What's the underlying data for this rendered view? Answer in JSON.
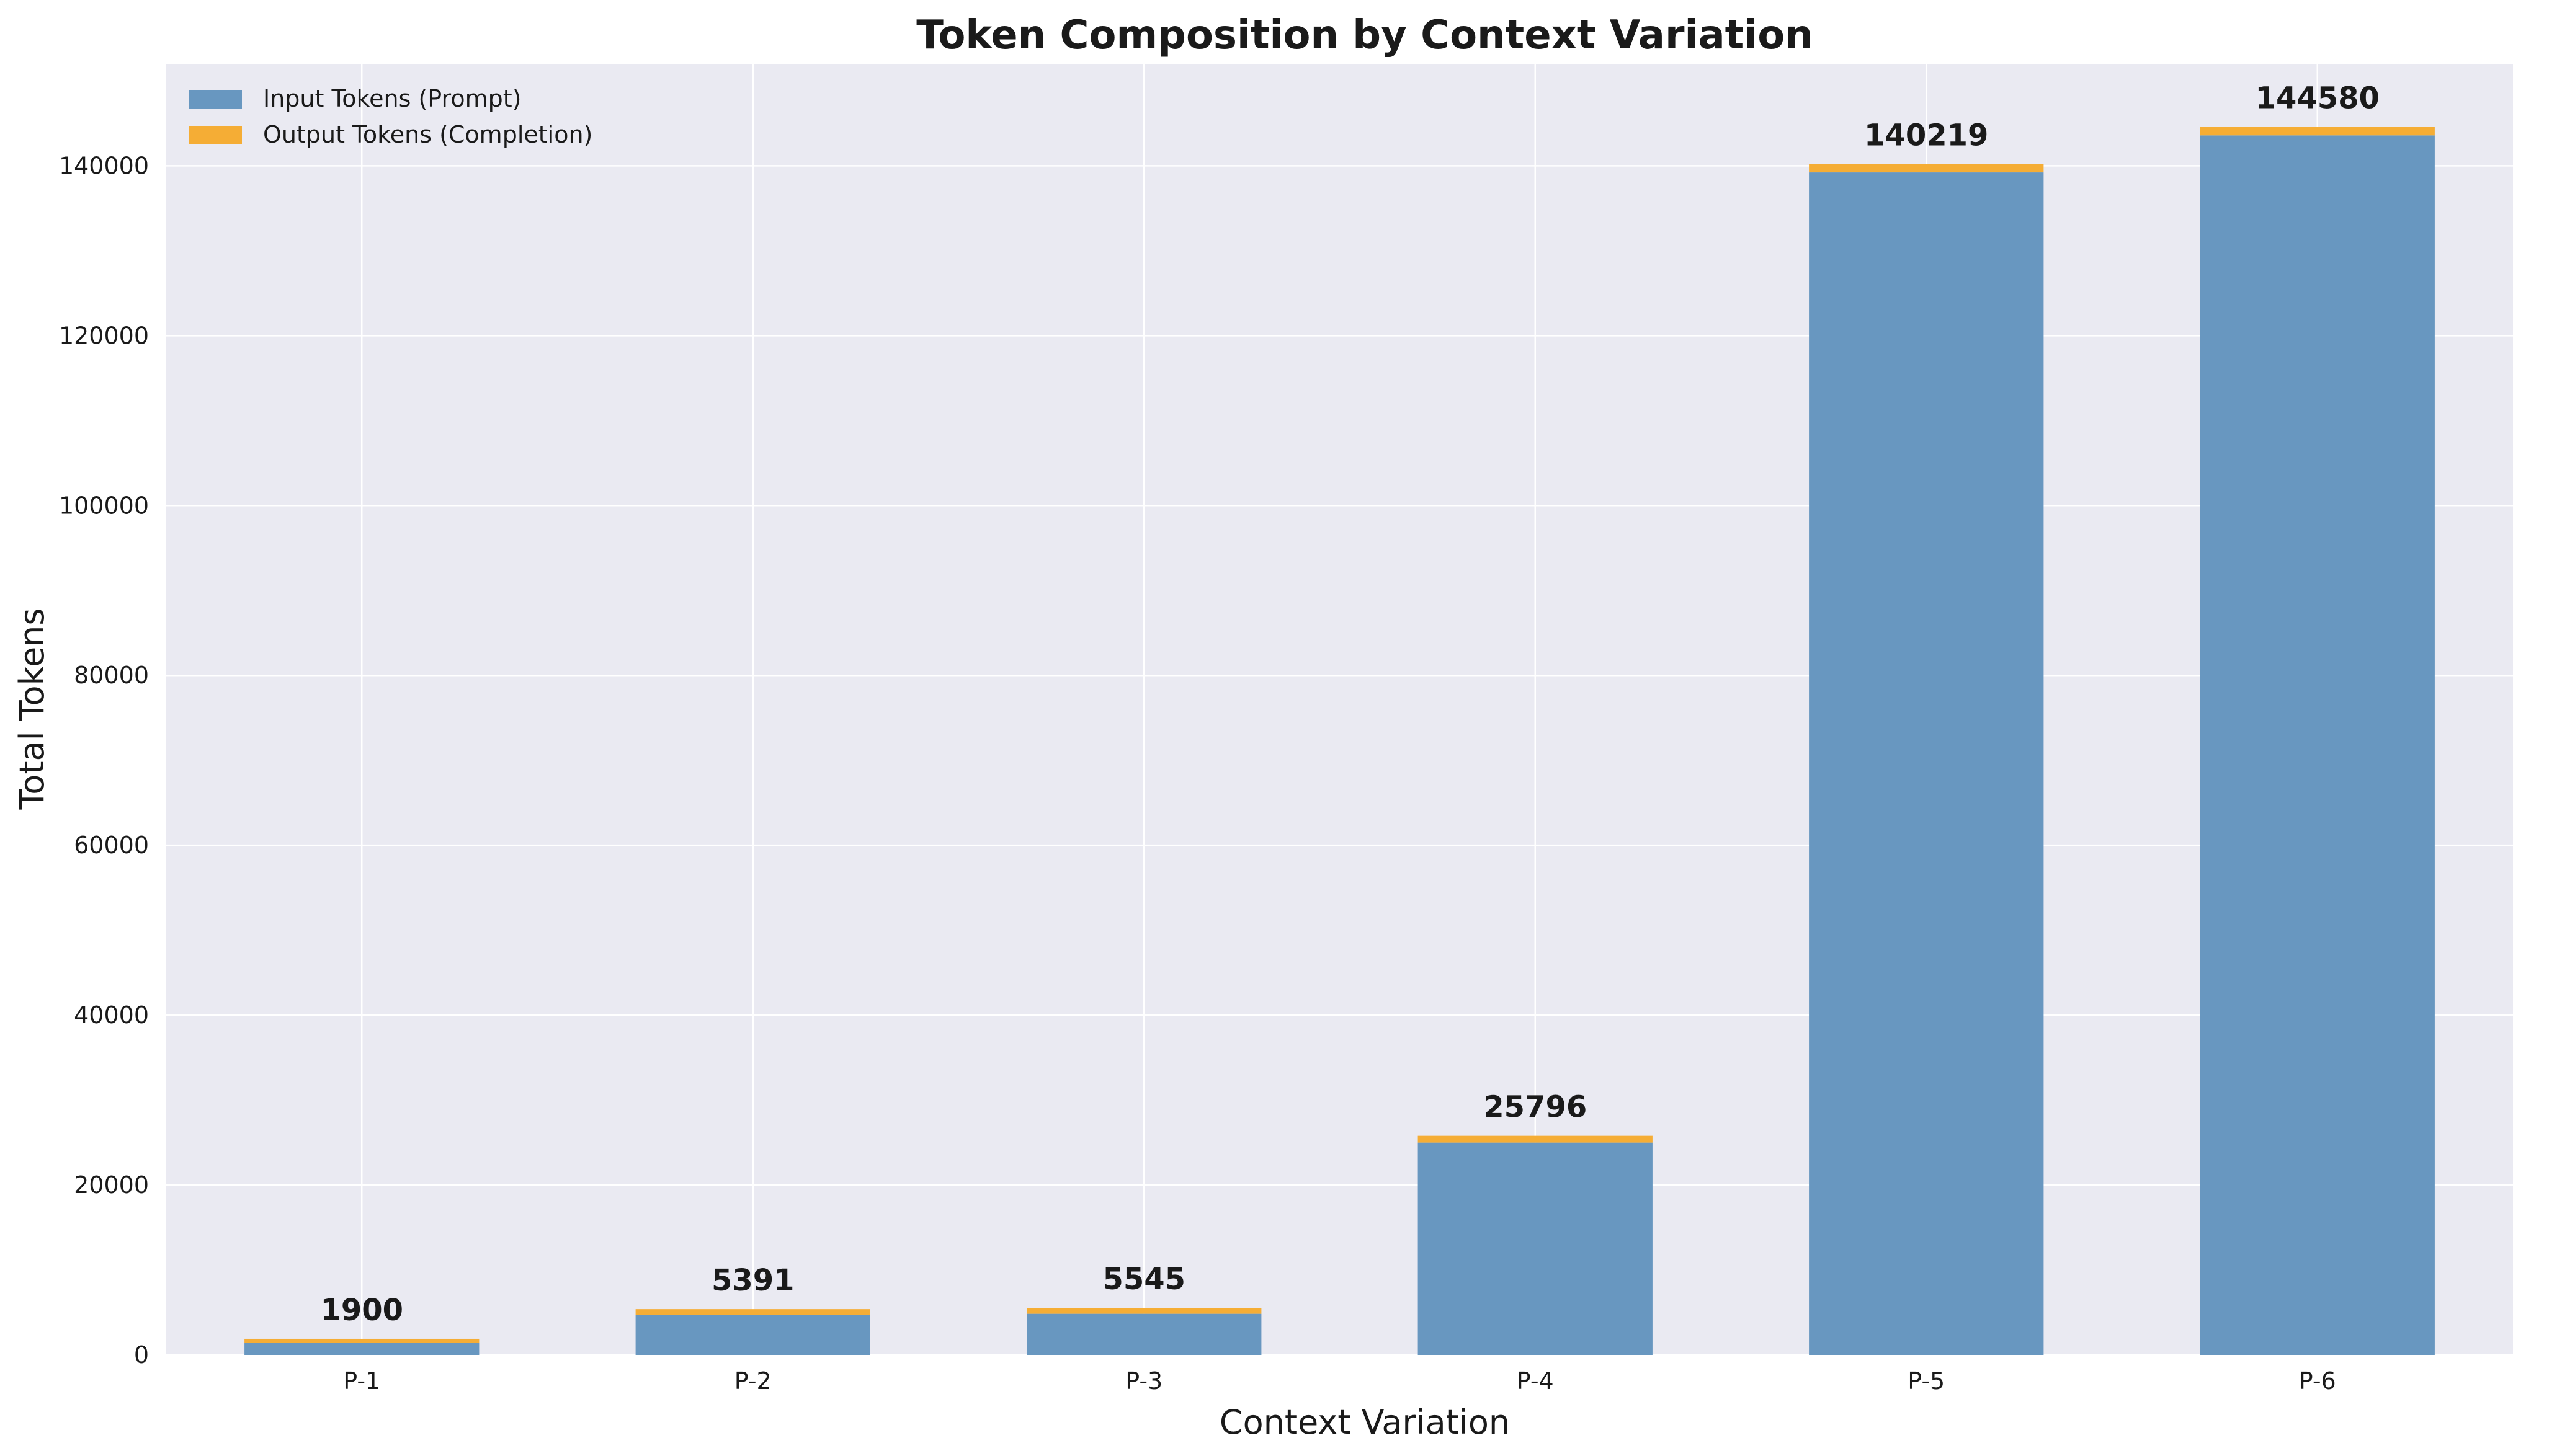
{
  "chart_data": {
    "type": "bar",
    "stacked": true,
    "title": "Token Composition by Context Variation",
    "xlabel": "Context Variation",
    "ylabel": "Total Tokens",
    "categories": [
      "P-1",
      "P-2",
      "P-3",
      "P-4",
      "P-5",
      "P-6"
    ],
    "series": [
      {
        "name": "Input Tokens (Prompt)",
        "color": "#6897c0",
        "values": [
          1450,
          4691,
          4845,
          24996,
          139219,
          143580
        ]
      },
      {
        "name": "Output Tokens (Completion)",
        "color": "#f5ad35",
        "values": [
          450,
          700,
          700,
          800,
          1000,
          1000
        ]
      }
    ],
    "totals": [
      1900,
      5391,
      5545,
      25796,
      140219,
      144580
    ],
    "ylim": [
      0,
      152000
    ],
    "yticks": [
      0,
      20000,
      40000,
      60000,
      80000,
      100000,
      120000,
      140000
    ],
    "grid": true,
    "legend_position": "top-left",
    "background": "#eaeaf2"
  }
}
